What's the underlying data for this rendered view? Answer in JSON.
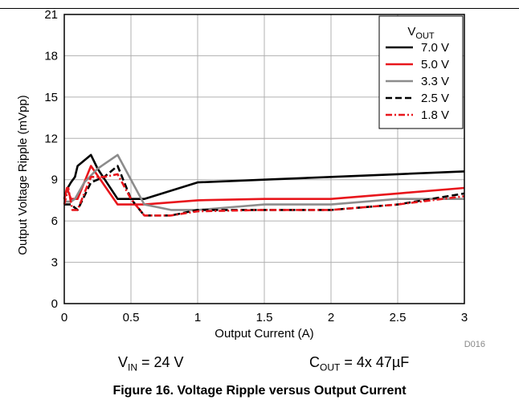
{
  "chart_data": {
    "type": "line",
    "xlabel": "Output Current (A)",
    "ylabel": "Output Voltage Ripple (mVpp)",
    "xlim": [
      0,
      3
    ],
    "ylim": [
      0,
      21
    ],
    "xticks": [
      "0",
      "0.5",
      "1",
      "1.5",
      "2",
      "2.5",
      "3"
    ],
    "yticks": [
      "0",
      "3",
      "6",
      "9",
      "12",
      "15",
      "18",
      "21"
    ],
    "grid": true,
    "legend_title_main": "V",
    "legend_title_sub": "OUT",
    "legend_position": "top-right",
    "series": [
      {
        "name": "7.0 V",
        "color": "#000000",
        "dash": "solid",
        "points": [
          [
            0.0,
            7.6
          ],
          [
            0.02,
            8.3
          ],
          [
            0.05,
            8.8
          ],
          [
            0.08,
            9.2
          ],
          [
            0.1,
            10.0
          ],
          [
            0.2,
            10.8
          ],
          [
            0.25,
            9.8
          ],
          [
            0.4,
            7.6
          ],
          [
            0.5,
            7.6
          ],
          [
            0.6,
            7.6
          ],
          [
            1.0,
            8.8
          ],
          [
            1.5,
            9.0
          ],
          [
            2.0,
            9.2
          ],
          [
            2.5,
            9.4
          ],
          [
            3.0,
            9.6
          ]
        ]
      },
      {
        "name": "5.0 V",
        "color": "#e8161c",
        "dash": "solid",
        "points": [
          [
            0.0,
            7.6
          ],
          [
            0.02,
            8.4
          ],
          [
            0.05,
            7.6
          ],
          [
            0.1,
            7.6
          ],
          [
            0.2,
            10.0
          ],
          [
            0.3,
            8.6
          ],
          [
            0.4,
            7.2
          ],
          [
            0.5,
            7.2
          ],
          [
            0.6,
            7.2
          ],
          [
            1.0,
            7.5
          ],
          [
            1.5,
            7.6
          ],
          [
            2.0,
            7.6
          ],
          [
            2.5,
            8.0
          ],
          [
            3.0,
            8.4
          ]
        ]
      },
      {
        "name": "3.3 V",
        "color": "#8c8c8c",
        "dash": "solid",
        "points": [
          [
            0.0,
            7.4
          ],
          [
            0.05,
            7.4
          ],
          [
            0.08,
            7.6
          ],
          [
            0.15,
            8.8
          ],
          [
            0.25,
            9.8
          ],
          [
            0.4,
            10.8
          ],
          [
            0.5,
            9.0
          ],
          [
            0.6,
            7.2
          ],
          [
            0.8,
            6.8
          ],
          [
            1.0,
            6.8
          ],
          [
            1.5,
            7.2
          ],
          [
            2.0,
            7.2
          ],
          [
            2.5,
            7.6
          ],
          [
            3.0,
            7.6
          ]
        ]
      },
      {
        "name": "2.5 V",
        "color": "#000000",
        "dash": "dash",
        "points": [
          [
            0.0,
            7.2
          ],
          [
            0.05,
            7.2
          ],
          [
            0.1,
            6.8
          ],
          [
            0.2,
            8.8
          ],
          [
            0.3,
            9.2
          ],
          [
            0.4,
            10.0
          ],
          [
            0.5,
            7.6
          ],
          [
            0.6,
            6.4
          ],
          [
            0.8,
            6.4
          ],
          [
            1.0,
            6.8
          ],
          [
            1.5,
            6.8
          ],
          [
            2.0,
            6.8
          ],
          [
            2.5,
            7.2
          ],
          [
            3.0,
            8.0
          ]
        ]
      },
      {
        "name": "1.8 V",
        "color": "#e8161c",
        "dash": "dashdot",
        "points": [
          [
            0.0,
            7.2
          ],
          [
            0.03,
            8.4
          ],
          [
            0.06,
            6.8
          ],
          [
            0.1,
            6.8
          ],
          [
            0.2,
            9.2
          ],
          [
            0.3,
            9.2
          ],
          [
            0.4,
            9.4
          ],
          [
            0.5,
            7.6
          ],
          [
            0.6,
            6.4
          ],
          [
            0.8,
            6.4
          ],
          [
            1.0,
            6.7
          ],
          [
            1.5,
            6.8
          ],
          [
            2.0,
            6.8
          ],
          [
            2.5,
            7.2
          ],
          [
            3.0,
            7.8
          ]
        ]
      }
    ]
  },
  "figure_code": "D016",
  "conditions": {
    "vin_main": "V",
    "vin_sub": "IN",
    "vin_value": " = 24 V",
    "cout_main": "C",
    "cout_sub": "OUT",
    "cout_value": " = 4x 47µF"
  },
  "caption": "Figure 16. Voltage Ripple versus Output Current"
}
